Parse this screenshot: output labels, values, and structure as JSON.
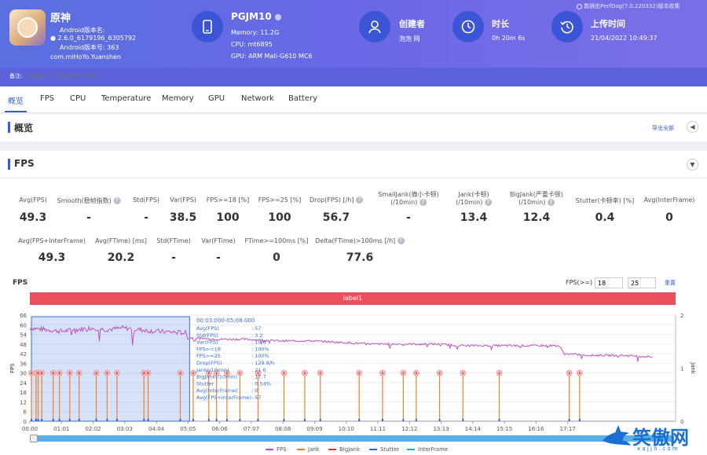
{
  "header": {
    "app_name": "原神",
    "android_version_label": "Android版本名:",
    "android_version_value": "2.6.0_6179196_6305792",
    "android_build_label": "Android版本号: 363",
    "package": "com.miHoYo.Yuanshen",
    "device_name": "PGJM10",
    "memory": "Memory: 11.2G",
    "cpu": "CPU: mt6895",
    "gpu": "GPU: ARM Mali-G610 MC6",
    "creator_label": "创建者",
    "creator_value": "泡泡 网",
    "duration_label": "时长",
    "duration_value": "0h 20m 6s",
    "upload_label": "上传时间",
    "upload_value": "21/04/2022 10:49:37",
    "source_note": "数据由PerfDog(7.0.220332)版本收集",
    "note_label": "备注:",
    "note_placeholder": "添加备注，不超过200个字符"
  },
  "tabs": [
    "概览",
    "FPS",
    "CPU",
    "Temperature",
    "Memory",
    "GPU",
    "Network",
    "Battery"
  ],
  "overview": {
    "title": "概览",
    "export": "导出全部"
  },
  "fps_section": {
    "title": "FPS",
    "row1": [
      {
        "label": "Avg(FPS)",
        "value": "49.3"
      },
      {
        "label": "Smooth(稳帧指数)",
        "value": "-",
        "help": true
      },
      {
        "label": "Std(FPS)",
        "value": "-"
      },
      {
        "label": "Var(FPS)",
        "value": "38.5"
      },
      {
        "label": "FPS>=18 [%]",
        "value": "100"
      },
      {
        "label": "FPS>=25 [%]",
        "value": "100"
      },
      {
        "label": "Drop(FPS) [/h]",
        "value": "56.7",
        "help": true
      },
      {
        "label": "SmallJank(微小卡顿)\n(/10min)",
        "value": "-",
        "help": true
      },
      {
        "label": "Jank(卡顿)\n(/10min)",
        "value": "13.4",
        "help": true
      },
      {
        "label": "BigJank(严重卡顿)\n(/10min)",
        "value": "12.4",
        "help": true
      },
      {
        "label": "Stutter(卡顿率) [%]",
        "value": "0.4"
      },
      {
        "label": "Avg(InterFrame)",
        "value": "0"
      }
    ],
    "row2": [
      {
        "label": "Avg(FPS+InterFrame)",
        "value": "49.3"
      },
      {
        "label": "Avg(FTime) [ms]",
        "value": "20.2"
      },
      {
        "label": "Std(FTime)",
        "value": "-"
      },
      {
        "label": "Var(FTime)",
        "value": "-"
      },
      {
        "label": "FTime>=100ms [%]",
        "value": "0"
      },
      {
        "label": "Delta(FTime)>100ms [/h]",
        "value": "77.6",
        "help": true
      }
    ]
  },
  "chart_controls": {
    "chart_title": "FPS",
    "threshold_label": "FPS(>=)",
    "threshold1": "18",
    "threshold2": "25",
    "reset": "重置",
    "label_bar": "label1"
  },
  "tooltip": {
    "range": "00:03:000-05:08:000",
    "rows": [
      [
        "Avg(FPS)",
        ": 57"
      ],
      [
        "Std(FPS)",
        ": 3.2"
      ],
      [
        "Var(FPS)",
        ": 10.6"
      ],
      [
        "FPS>=18",
        ": 100%"
      ],
      [
        "FPS>=25",
        ": 100%"
      ],
      [
        "Drop(FPS)",
        ": 129.8/h"
      ],
      [
        "Jank(/10min)",
        ": 21.6"
      ],
      [
        "BigJank(/10min)",
        ": 17.7"
      ],
      [
        "Stutter",
        ": 0.54%"
      ],
      [
        "Avg(InterFrame)",
        ": 0"
      ],
      [
        "Avg(FPS+InterFrame)",
        ": 57"
      ]
    ]
  },
  "legend": [
    "FPS",
    "Jank",
    "BigJank",
    "Stutter",
    "InterFrame"
  ],
  "watermark": {
    "text": "笑傲网",
    "url": "x a j j n . c o m"
  },
  "colors": {
    "fps": "#c050c0",
    "jank": "#f08030",
    "bigjank": "#e03030",
    "stutter": "#3060e0",
    "interframe": "#20b0d0"
  },
  "chart_data": {
    "type": "line",
    "title": "FPS",
    "xlabel": "",
    "ylabel": "FPS",
    "y2label": "Jank",
    "ylim": [
      0,
      66
    ],
    "y2lim": [
      0,
      2
    ],
    "x_ticks": [
      "00:00",
      "01:01",
      "02:02",
      "03:03",
      "04:04",
      "05:05",
      "06:06",
      "07:07",
      "08:08",
      "09:09",
      "10:10",
      "11:11",
      "12:12",
      "13:13",
      "14:14",
      "15:15",
      "16:16",
      "17:17"
    ],
    "y_ticks": [
      0,
      6,
      12,
      18,
      24,
      30,
      36,
      42,
      48,
      54,
      60,
      66
    ],
    "y2_ticks": [
      0,
      1,
      2
    ],
    "series": [
      {
        "name": "FPS",
        "points_sec": [
          [
            0,
            58
          ],
          [
            30,
            57
          ],
          [
            60,
            56
          ],
          [
            90,
            57
          ],
          [
            120,
            58
          ],
          [
            150,
            57
          ],
          [
            180,
            58
          ],
          [
            210,
            57
          ],
          [
            240,
            56
          ],
          [
            300,
            55
          ],
          [
            305,
            52
          ],
          [
            360,
            51
          ],
          [
            420,
            51
          ],
          [
            480,
            50
          ],
          [
            540,
            50
          ],
          [
            600,
            49
          ],
          [
            660,
            48
          ],
          [
            720,
            48
          ],
          [
            780,
            48
          ],
          [
            840,
            47
          ],
          [
            900,
            47
          ],
          [
            960,
            47
          ],
          [
            1020,
            47
          ],
          [
            1030,
            42
          ],
          [
            1080,
            41
          ],
          [
            1140,
            41
          ],
          [
            1200,
            40
          ]
        ]
      },
      {
        "name": "Jank",
        "events_sec": [
          3,
          12,
          16,
          23,
          45,
          57,
          77,
          95,
          128,
          149,
          168,
          220,
          228,
          290,
          315,
          345,
          360,
          380,
          405,
          440,
          490,
          530,
          560,
          635,
          680,
          720,
          745,
          790,
          835,
          905,
          1040,
          1060
        ]
      },
      {
        "name": "BigJank",
        "events_sec": [
          3,
          12,
          16,
          23,
          45,
          57,
          77,
          95,
          128,
          149,
          168,
          220,
          228,
          290,
          315,
          345,
          360,
          380,
          405,
          440,
          490,
          530,
          560,
          635,
          680,
          720,
          745,
          790,
          835,
          905,
          1040,
          1060
        ]
      }
    ],
    "selection_sec": [
      3,
      308
    ]
  }
}
